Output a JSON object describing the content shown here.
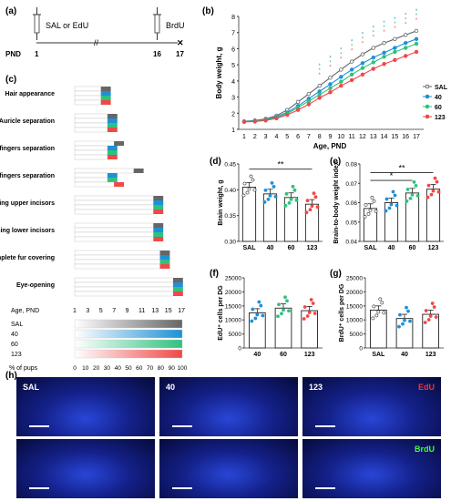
{
  "panels": {
    "a": "(a)",
    "b": "(b)",
    "c": "(c)",
    "d": "(d)",
    "e": "(e)",
    "f": "(f)",
    "g": "(g)",
    "h": "(h)"
  },
  "timeline": {
    "inj1": "SAL or EdU",
    "inj2": "BrdU",
    "pnd_label": "PND",
    "days": [
      "1",
      "16",
      "17"
    ]
  },
  "colors": {
    "SAL": "#666666",
    "40": "#1e90d8",
    "60": "#2ec27e",
    "123": "#f04848"
  },
  "growth_chart": {
    "type": "line",
    "xlabel": "Age, PND",
    "ylabel": "Body weight, g",
    "x": [
      1,
      2,
      3,
      4,
      5,
      6,
      7,
      8,
      9,
      10,
      11,
      12,
      13,
      14,
      15,
      16,
      17
    ],
    "ylim": [
      1,
      8
    ],
    "yticks": [
      "1",
      "2",
      "3",
      "4",
      "5",
      "6",
      "7",
      "8"
    ],
    "legend": [
      "SAL",
      "40",
      "60",
      "123"
    ],
    "series": [
      {
        "name": "SAL",
        "values": [
          1.5,
          1.55,
          1.65,
          1.85,
          2.2,
          2.7,
          3.2,
          3.7,
          4.2,
          4.7,
          5.2,
          5.65,
          6.05,
          6.35,
          6.6,
          6.85,
          7.1
        ]
      },
      {
        "name": "40",
        "values": [
          1.48,
          1.52,
          1.6,
          1.78,
          2.05,
          2.45,
          2.9,
          3.35,
          3.8,
          4.25,
          4.7,
          5.1,
          5.45,
          5.75,
          6.05,
          6.35,
          6.6
        ]
      },
      {
        "name": "60",
        "values": [
          1.47,
          1.5,
          1.58,
          1.72,
          1.98,
          2.35,
          2.75,
          3.15,
          3.55,
          3.95,
          4.4,
          4.8,
          5.15,
          5.5,
          5.8,
          6.05,
          6.3
        ]
      },
      {
        "name": "123",
        "values": [
          1.46,
          1.48,
          1.55,
          1.68,
          1.9,
          2.2,
          2.55,
          2.95,
          3.3,
          3.7,
          4.05,
          4.4,
          4.75,
          5.05,
          5.3,
          5.55,
          5.8
        ]
      }
    ]
  },
  "milestones": {
    "items": [
      "Hair appearance",
      "Auricle separation",
      "Forelimb fingers separation",
      "Hindlimb fingers separation",
      "Teething upper incisors",
      "Teething lower incisors",
      "Complete fur covering",
      "Eye-opening"
    ],
    "age_label": "Age, PND",
    "ticks": [
      "1",
      "3",
      "5",
      "7",
      "9",
      "11",
      "13",
      "15",
      "17"
    ],
    "legend_groups": [
      "SAL",
      "40",
      "60",
      "123"
    ],
    "pct_label": "% of pups",
    "pct_ticks": [
      "0",
      "10",
      "20",
      "30",
      "40",
      "50",
      "60",
      "70",
      "80",
      "90",
      "100"
    ]
  },
  "brain_weight": {
    "type": "bar",
    "ylabel": "Brain weight, g",
    "categories": [
      "SAL",
      "40",
      "60",
      "123"
    ],
    "values": [
      0.405,
      0.392,
      0.385,
      0.372
    ],
    "ylim": [
      0.3,
      0.45
    ],
    "yticks": [
      "0.30",
      "0.35",
      "0.40",
      "0.45"
    ],
    "sig": "**"
  },
  "brain_ratio": {
    "type": "bar",
    "ylabel": "Brain-to-body weight index",
    "categories": [
      "SAL",
      "40",
      "60",
      "123"
    ],
    "values": [
      0.057,
      0.06,
      0.065,
      0.067
    ],
    "ylim": [
      0.04,
      0.08
    ],
    "yticks": [
      "0.04",
      "0.05",
      "0.06",
      "0.07",
      "0.08"
    ],
    "sig1": "*",
    "sig2": "**"
  },
  "edu_counts": {
    "type": "bar",
    "ylabel": "EdU⁺ cells per DG",
    "categories": [
      "40",
      "60",
      "123"
    ],
    "values": [
      12500,
      14200,
      13300
    ],
    "ylim": [
      0,
      25000
    ],
    "yticks": [
      "0",
      "5000",
      "10000",
      "15000",
      "20000",
      "25000"
    ]
  },
  "brdu_counts": {
    "type": "bar",
    "ylabel": "BrdU⁺ cells per DG",
    "categories": [
      "SAL",
      "40",
      "123"
    ],
    "values": [
      13500,
      10500,
      12000
    ],
    "ylim": [
      0,
      25000
    ],
    "yticks": [
      "0",
      "5000",
      "10000",
      "15000",
      "20000",
      "25000"
    ]
  },
  "micrographs": {
    "t1": "SAL",
    "t2": "40",
    "t3": "123",
    "stain1": "EdU",
    "stain2": "BrdU"
  }
}
